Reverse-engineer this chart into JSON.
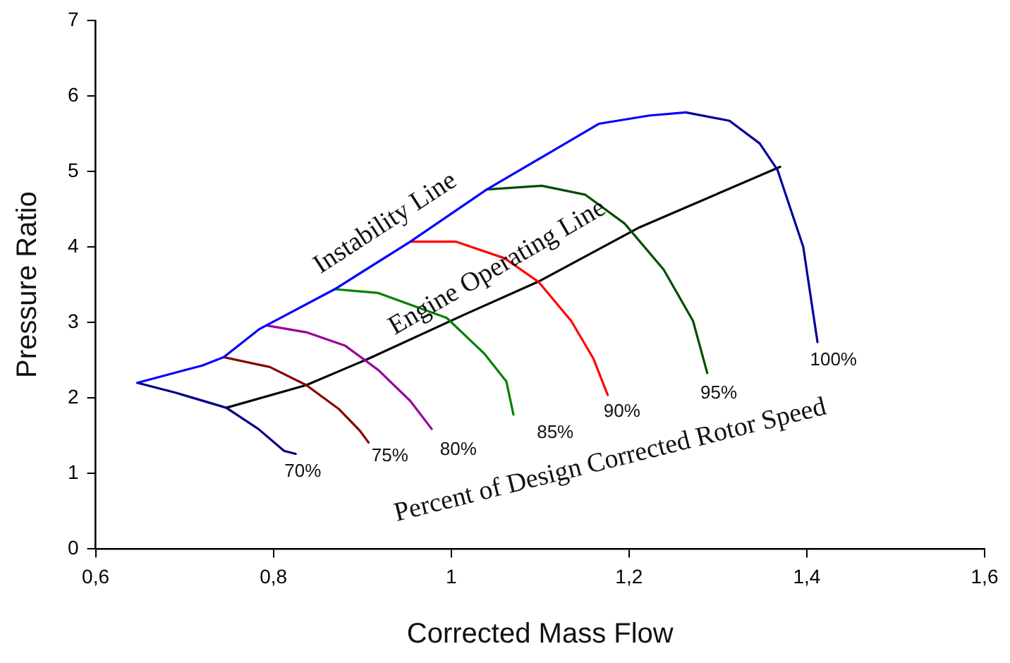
{
  "chart_data": {
    "type": "line",
    "xlabel": "Corrected Mass Flow",
    "ylabel": "Pressure Ratio",
    "xlim": [
      0.6,
      1.6
    ],
    "xticks": [
      {
        "value": 0.6,
        "label": "0,6"
      },
      {
        "value": 0.8,
        "label": "0,8"
      },
      1,
      {
        "value": 1.2,
        "label": "1,2"
      },
      {
        "value": 1.4,
        "label": "1,4"
      },
      {
        "value": 1.6,
        "label": "1,6"
      }
    ],
    "ylim": [
      0,
      7
    ],
    "yticks": [
      0,
      1,
      2,
      3,
      4,
      5,
      6,
      7
    ],
    "grid": false,
    "legend": false,
    "marker": "none",
    "line_style": "solid",
    "series": [
      {
        "color": "#0000ff",
        "x": [
          0.647,
          0.72,
          0.744,
          0.784,
          0.792,
          0.869,
          0.954,
          1.04,
          1.166,
          1.223,
          1.264
        ],
        "values": [
          2.2,
          2.43,
          2.54,
          2.91,
          2.96,
          3.44,
          4.07,
          4.76,
          5.63,
          5.74,
          5.78
        ]
      },
      {
        "color": "#000099",
        "x": [
          1.264,
          1.313,
          1.347,
          1.367,
          1.396,
          1.412
        ],
        "values": [
          5.78,
          5.67,
          5.37,
          5.02,
          4.0,
          2.74
        ]
      },
      {
        "color": "#004d00",
        "x": [
          1.04,
          1.102,
          1.151,
          1.195,
          1.239,
          1.272,
          1.288
        ],
        "values": [
          4.76,
          4.81,
          4.69,
          4.31,
          3.7,
          3.02,
          2.33
        ]
      },
      {
        "color": "#ff0000",
        "x": [
          0.954,
          1.005,
          1.06,
          1.098,
          1.135,
          1.16,
          1.176
        ],
        "values": [
          4.07,
          4.07,
          3.85,
          3.54,
          3.02,
          2.52,
          2.04
        ]
      },
      {
        "color": "#008000",
        "x": [
          0.869,
          0.918,
          0.995,
          1.037,
          1.062,
          1.07
        ],
        "values": [
          3.44,
          3.39,
          3.06,
          2.59,
          2.22,
          1.78
        ]
      },
      {
        "color": "#990099",
        "x": [
          0.792,
          0.837,
          0.881,
          0.918,
          0.954,
          0.978
        ],
        "values": [
          2.96,
          2.87,
          2.69,
          2.37,
          1.96,
          1.59
        ]
      },
      {
        "color": "#8b0000",
        "x": [
          0.744,
          0.796,
          0.837,
          0.874,
          0.897,
          0.907
        ],
        "values": [
          2.54,
          2.41,
          2.17,
          1.85,
          1.57,
          1.41
        ]
      },
      {
        "color": "#000080",
        "x": [
          0.647,
          0.69,
          0.747,
          0.783,
          0.812,
          0.825
        ],
        "values": [
          2.2,
          2.07,
          1.87,
          1.59,
          1.3,
          1.26
        ]
      },
      {
        "color": "#000000",
        "x": [
          0.747,
          0.837,
          0.907,
          1.016,
          1.098,
          1.212,
          1.37
        ],
        "values": [
          1.87,
          2.17,
          2.52,
          3.11,
          3.54,
          4.26,
          5.06
        ]
      }
    ],
    "annotations": [
      "Instability Line",
      "Engine Operating Line",
      "Percent of Design Corrected Rotor Speed",
      "70%",
      "75%",
      "80%",
      "85%",
      "90%",
      "95%",
      "100%"
    ]
  }
}
